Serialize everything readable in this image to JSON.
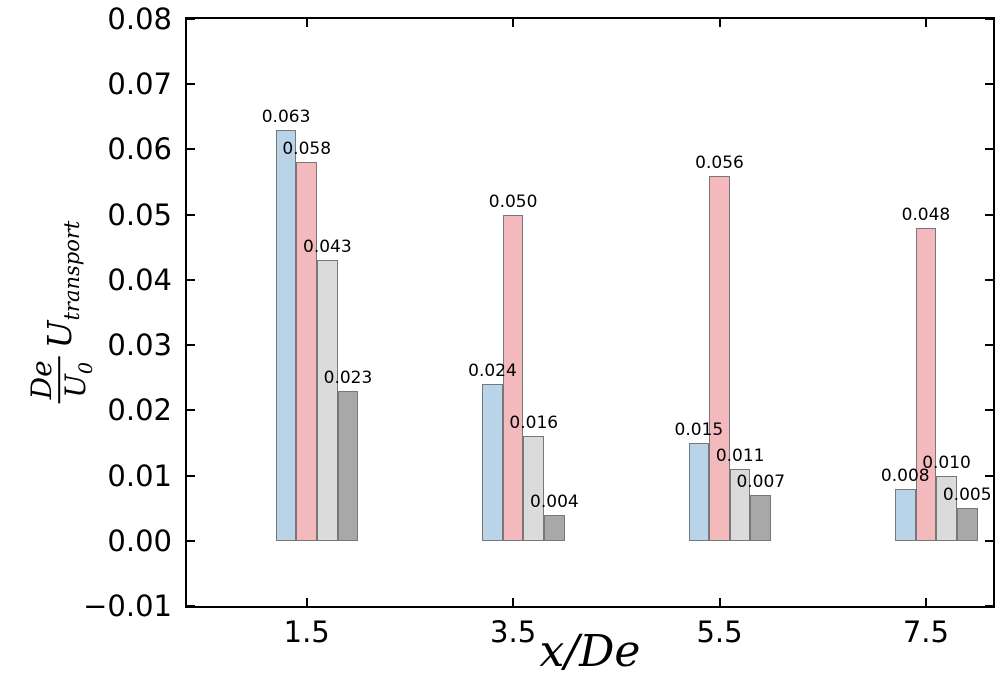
{
  "axes": {
    "xlabel": "x/De",
    "ylabel": {
      "frac_num": "De",
      "frac_den_base": "U",
      "frac_den_sub": "0",
      "var_base": "U",
      "var_sub": "transport"
    },
    "x_ticks": [
      "1.5",
      "3.5",
      "5.5",
      "7.5"
    ],
    "y_ticks": [
      "0.08",
      "0.07",
      "0.06",
      "0.05",
      "0.04",
      "0.03",
      "0.02",
      "0.01",
      "0.00",
      "−0.01"
    ]
  },
  "chart_data": {
    "type": "bar",
    "title": "",
    "xlabel": "x/De",
    "ylabel": "(De/U0)*U_transport",
    "categories": [
      "1.5",
      "3.5",
      "5.5",
      "7.5"
    ],
    "series": [
      {
        "name": "series-blue",
        "color": "#b9d3e9",
        "values": [
          0.063,
          0.024,
          0.015,
          0.008
        ]
      },
      {
        "name": "series-pink",
        "color": "#f3b9bd",
        "values": [
          0.058,
          0.05,
          0.056,
          0.048
        ]
      },
      {
        "name": "series-light-gray",
        "color": "#dbdbdb",
        "values": [
          0.043,
          0.016,
          0.011,
          0.01
        ]
      },
      {
        "name": "series-dark-gray",
        "color": "#a8a8a8",
        "values": [
          0.023,
          0.004,
          0.007,
          0.005
        ]
      }
    ],
    "value_labels": true,
    "value_label_decimals": 3,
    "bar_edge_color": "#777777",
    "bar_width_units": 0.2,
    "bar_offsets_units": [
      -0.2,
      0.0,
      0.2,
      0.4
    ],
    "xlim": [
      0.34,
      8.15
    ],
    "ylim": [
      -0.01,
      0.08
    ],
    "y_tick_step": 0.01,
    "grid": false,
    "legend": null,
    "background": "#ffffff"
  }
}
